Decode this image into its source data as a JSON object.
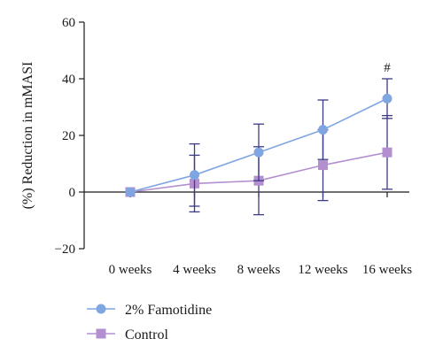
{
  "chart_data": {
    "type": "line",
    "title": "",
    "xlabel": "",
    "ylabel": "(%) Reduction in mMASI",
    "categories": [
      "0 weeks",
      "4 weeks",
      "8 weeks",
      "12 weeks",
      "16 weeks"
    ],
    "ylim": [
      -20,
      60
    ],
    "yticks": [
      -20,
      0,
      20,
      40,
      60
    ],
    "grid": false,
    "legend_position": "bottom-left",
    "series": [
      {
        "name": "2% Famotidine",
        "color": "#7fa6e0",
        "marker": "circle",
        "values": [
          0,
          6,
          14,
          22,
          33
        ],
        "error": [
          0,
          11,
          10,
          10.5,
          7
        ]
      },
      {
        "name": "Control",
        "color": "#b48fd0",
        "marker": "square",
        "values": [
          0,
          3,
          4,
          9.5,
          14
        ],
        "error": [
          0,
          10,
          12,
          12.5,
          13
        ]
      }
    ],
    "error_bar_color": "#3d3a86",
    "annotations": [
      {
        "text": "#",
        "category": "16 weeks",
        "y": 44
      }
    ]
  }
}
